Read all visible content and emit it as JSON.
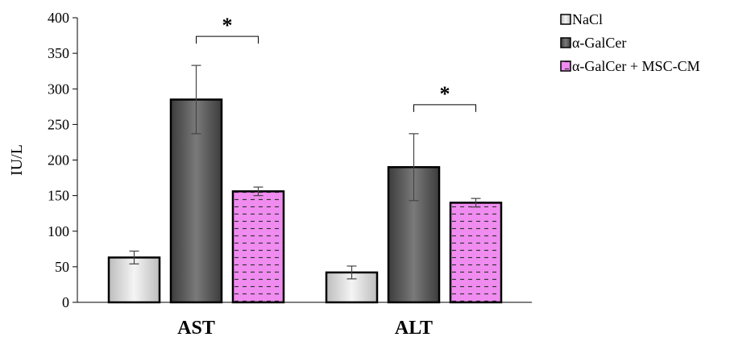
{
  "chart_data": {
    "type": "bar",
    "title": "",
    "xlabel": "",
    "ylabel": "IU/L",
    "ylim": [
      0,
      400
    ],
    "yticks": [
      0,
      50,
      100,
      150,
      200,
      250,
      300,
      350,
      400
    ],
    "categories": [
      "AST",
      "ALT"
    ],
    "grid": false,
    "legend_position": "top-right",
    "series": [
      {
        "name": "NaCl",
        "values": [
          63,
          42
        ],
        "errors": [
          9,
          9
        ],
        "color": "#dcdcdc",
        "pattern": "gradient"
      },
      {
        "name": "α-GalCer",
        "values": [
          285,
          190
        ],
        "errors": [
          48,
          47
        ],
        "color": "#5a5a5a",
        "pattern": "gradient"
      },
      {
        "name": "α-GalCer + MSC-CM",
        "values": [
          156,
          140
        ],
        "errors": [
          6,
          6
        ],
        "color": "#f08cf0",
        "pattern": "dashes"
      }
    ],
    "annotations": [
      {
        "text": "*",
        "category": "AST",
        "between": [
          "α-GalCer",
          "α-GalCer + MSC-CM"
        ]
      },
      {
        "text": "*",
        "category": "ALT",
        "between": [
          "α-GalCer",
          "α-GalCer + MSC-CM"
        ]
      }
    ]
  }
}
